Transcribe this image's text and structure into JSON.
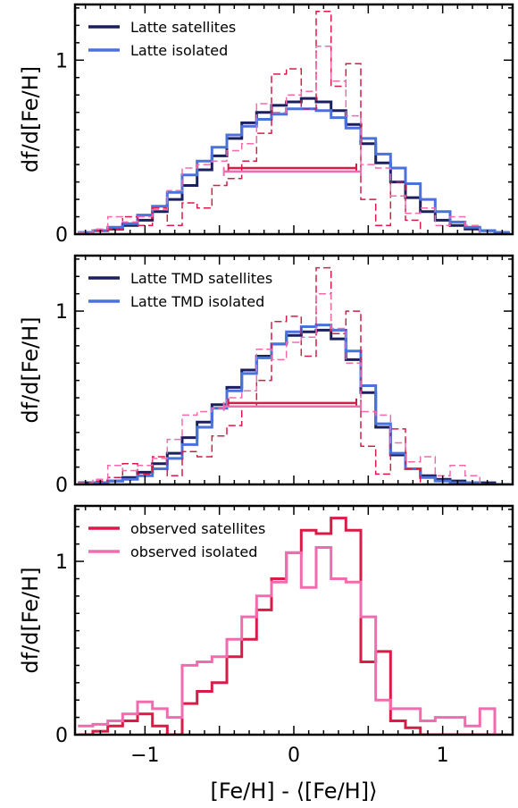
{
  "figure": {
    "xlabel": "[Fe/H] - ⟨[Fe/H]⟩",
    "xticks": [
      -1,
      0,
      1
    ],
    "xlim": [
      -1.47,
      1.47
    ]
  },
  "chart_data": [
    {
      "type": "line",
      "ylabel": "df/d[Fe/H]",
      "ylim": [
        0,
        1.32
      ],
      "yticks": [
        0,
        1
      ],
      "legend_position": "top-left",
      "x_edges": [
        -1.45,
        -1.35,
        -1.25,
        -1.15,
        -1.05,
        -0.95,
        -0.85,
        -0.75,
        -0.65,
        -0.55,
        -0.45,
        -0.35,
        -0.25,
        -0.15,
        -0.05,
        0.05,
        0.15,
        0.25,
        0.35,
        0.45,
        0.55,
        0.65,
        0.75,
        0.85,
        0.95,
        1.05,
        1.15,
        1.25,
        1.35,
        1.45
      ],
      "series": [
        {
          "name": "Latte satellites",
          "color": "#1b1f5e",
          "style": "solid",
          "in_legend": true,
          "values": [
            0.01,
            0.02,
            0.03,
            0.05,
            0.08,
            0.13,
            0.2,
            0.28,
            0.37,
            0.45,
            0.55,
            0.64,
            0.7,
            0.74,
            0.76,
            0.78,
            0.76,
            0.71,
            0.63,
            0.52,
            0.41,
            0.3,
            0.21,
            0.13,
            0.08,
            0.05,
            0.03,
            0.02,
            0.01
          ]
        },
        {
          "name": "Latte isolated",
          "color": "#4a72dc",
          "style": "solid",
          "in_legend": true,
          "values": [
            0.01,
            0.02,
            0.04,
            0.06,
            0.11,
            0.16,
            0.24,
            0.34,
            0.42,
            0.5,
            0.57,
            0.62,
            0.66,
            0.69,
            0.72,
            0.72,
            0.71,
            0.67,
            0.61,
            0.55,
            0.46,
            0.38,
            0.29,
            0.2,
            0.13,
            0.07,
            0.04,
            0.02,
            0.01
          ]
        },
        {
          "name": "",
          "color": "#d81b47",
          "style": "dashed",
          "in_legend": false,
          "values": [
            0.0,
            0.02,
            0.03,
            0.1,
            0.05,
            0.15,
            0.05,
            0.18,
            0.15,
            0.28,
            0.32,
            0.42,
            0.58,
            0.92,
            0.95,
            0.72,
            1.28,
            0.85,
            0.98,
            0.2,
            0.05,
            0.3,
            0.08,
            0.0,
            0.0,
            0.0,
            0.0,
            0.0,
            0.0
          ]
        },
        {
          "name": "",
          "color": "#f26bae",
          "style": "dashed",
          "in_legend": false,
          "values": [
            0.01,
            0.03,
            0.1,
            0.07,
            0.1,
            0.14,
            0.25,
            0.38,
            0.4,
            0.42,
            0.48,
            0.52,
            0.75,
            0.7,
            0.8,
            0.82,
            1.08,
            0.88,
            0.68,
            0.4,
            0.38,
            0.22,
            0.12,
            0.15,
            0.05,
            0.1,
            0.05,
            0.0,
            0.0
          ]
        }
      ],
      "intervals": [
        {
          "x": [
            -0.44,
            0.42
          ],
          "y": 0.38,
          "color": "#d81b47"
        },
        {
          "x": [
            -0.47,
            0.45
          ],
          "y": 0.36,
          "color": "#f26bae"
        }
      ]
    },
    {
      "type": "line",
      "ylabel": "df/d[Fe/H]",
      "ylim": [
        0,
        1.32
      ],
      "yticks": [
        0,
        1
      ],
      "legend_position": "top-left",
      "x_edges": [
        -1.45,
        -1.35,
        -1.25,
        -1.15,
        -1.05,
        -0.95,
        -0.85,
        -0.75,
        -0.65,
        -0.55,
        -0.45,
        -0.35,
        -0.25,
        -0.15,
        -0.05,
        0.05,
        0.15,
        0.25,
        0.35,
        0.45,
        0.55,
        0.65,
        0.75,
        0.85,
        0.95,
        1.05,
        1.15,
        1.25,
        1.35,
        1.45
      ],
      "series": [
        {
          "name": "Latte TMD satellites",
          "color": "#1b1f5e",
          "style": "solid",
          "in_legend": true,
          "values": [
            0.01,
            0.01,
            0.02,
            0.04,
            0.07,
            0.12,
            0.18,
            0.27,
            0.36,
            0.46,
            0.56,
            0.66,
            0.74,
            0.81,
            0.86,
            0.88,
            0.89,
            0.84,
            0.72,
            0.53,
            0.33,
            0.17,
            0.09,
            0.05,
            0.03,
            0.02,
            0.01,
            0.01,
            0.0
          ]
        },
        {
          "name": "Latte TMD isolated",
          "color": "#4a72dc",
          "style": "solid",
          "in_legend": true,
          "values": [
            0.0,
            0.01,
            0.02,
            0.03,
            0.05,
            0.09,
            0.15,
            0.23,
            0.33,
            0.44,
            0.54,
            0.64,
            0.73,
            0.81,
            0.88,
            0.91,
            0.92,
            0.89,
            0.77,
            0.57,
            0.35,
            0.18,
            0.09,
            0.04,
            0.02,
            0.01,
            0.01,
            0.0,
            0.0
          ]
        },
        {
          "name": "",
          "color": "#d81b47",
          "style": "dashed",
          "in_legend": false,
          "values": [
            0.0,
            0.02,
            0.04,
            0.12,
            0.06,
            0.16,
            0.05,
            0.19,
            0.16,
            0.28,
            0.34,
            0.45,
            0.6,
            0.94,
            0.97,
            0.74,
            1.25,
            0.87,
            1.0,
            0.22,
            0.06,
            0.32,
            0.09,
            0.0,
            0.0,
            0.0,
            0.0,
            0.0,
            0.0
          ]
        },
        {
          "name": "",
          "color": "#f26bae",
          "style": "dashed",
          "in_legend": false,
          "values": [
            0.01,
            0.03,
            0.11,
            0.08,
            0.11,
            0.15,
            0.26,
            0.4,
            0.42,
            0.44,
            0.5,
            0.54,
            0.78,
            0.72,
            0.82,
            0.85,
            1.1,
            0.9,
            0.7,
            0.42,
            0.4,
            0.24,
            0.13,
            0.16,
            0.05,
            0.11,
            0.05,
            0.0,
            0.0
          ]
        }
      ],
      "intervals": [
        {
          "x": [
            -0.44,
            0.42
          ],
          "y": 0.47,
          "color": "#d81b47"
        },
        {
          "x": [
            -0.47,
            0.45
          ],
          "y": 0.45,
          "color": "#f26bae"
        }
      ]
    },
    {
      "type": "line",
      "ylabel": "df/d[Fe/H]",
      "ylim": [
        0,
        1.32
      ],
      "yticks": [
        0,
        1
      ],
      "legend_position": "top-left",
      "x_edges": [
        -1.45,
        -1.35,
        -1.25,
        -1.15,
        -1.05,
        -0.95,
        -0.85,
        -0.75,
        -0.65,
        -0.55,
        -0.45,
        -0.35,
        -0.25,
        -0.15,
        -0.05,
        0.05,
        0.15,
        0.25,
        0.35,
        0.45,
        0.55,
        0.65,
        0.75,
        0.85,
        0.95,
        1.05,
        1.15,
        1.25,
        1.35,
        1.45
      ],
      "series": [
        {
          "name": "observed satellites",
          "color": "#d81b47",
          "style": "solid",
          "in_legend": true,
          "values": [
            0.0,
            0.02,
            0.05,
            0.08,
            0.12,
            0.05,
            0.0,
            0.18,
            0.25,
            0.3,
            0.45,
            0.55,
            0.72,
            0.9,
            1.05,
            1.18,
            1.16,
            1.25,
            1.18,
            0.42,
            0.48,
            0.08,
            0.04,
            0.0,
            0.0,
            0.0,
            0.0,
            0.0,
            0.0
          ]
        },
        {
          "name": "observed isolated",
          "color": "#f26bae",
          "style": "solid",
          "in_legend": true,
          "values": [
            0.05,
            0.06,
            0.08,
            0.12,
            0.19,
            0.15,
            0.1,
            0.4,
            0.42,
            0.45,
            0.55,
            0.68,
            0.8,
            0.88,
            1.05,
            0.85,
            1.08,
            0.9,
            0.88,
            0.68,
            0.2,
            0.15,
            0.15,
            0.08,
            0.1,
            0.1,
            0.05,
            0.15,
            0.0
          ]
        }
      ],
      "intervals": []
    }
  ]
}
